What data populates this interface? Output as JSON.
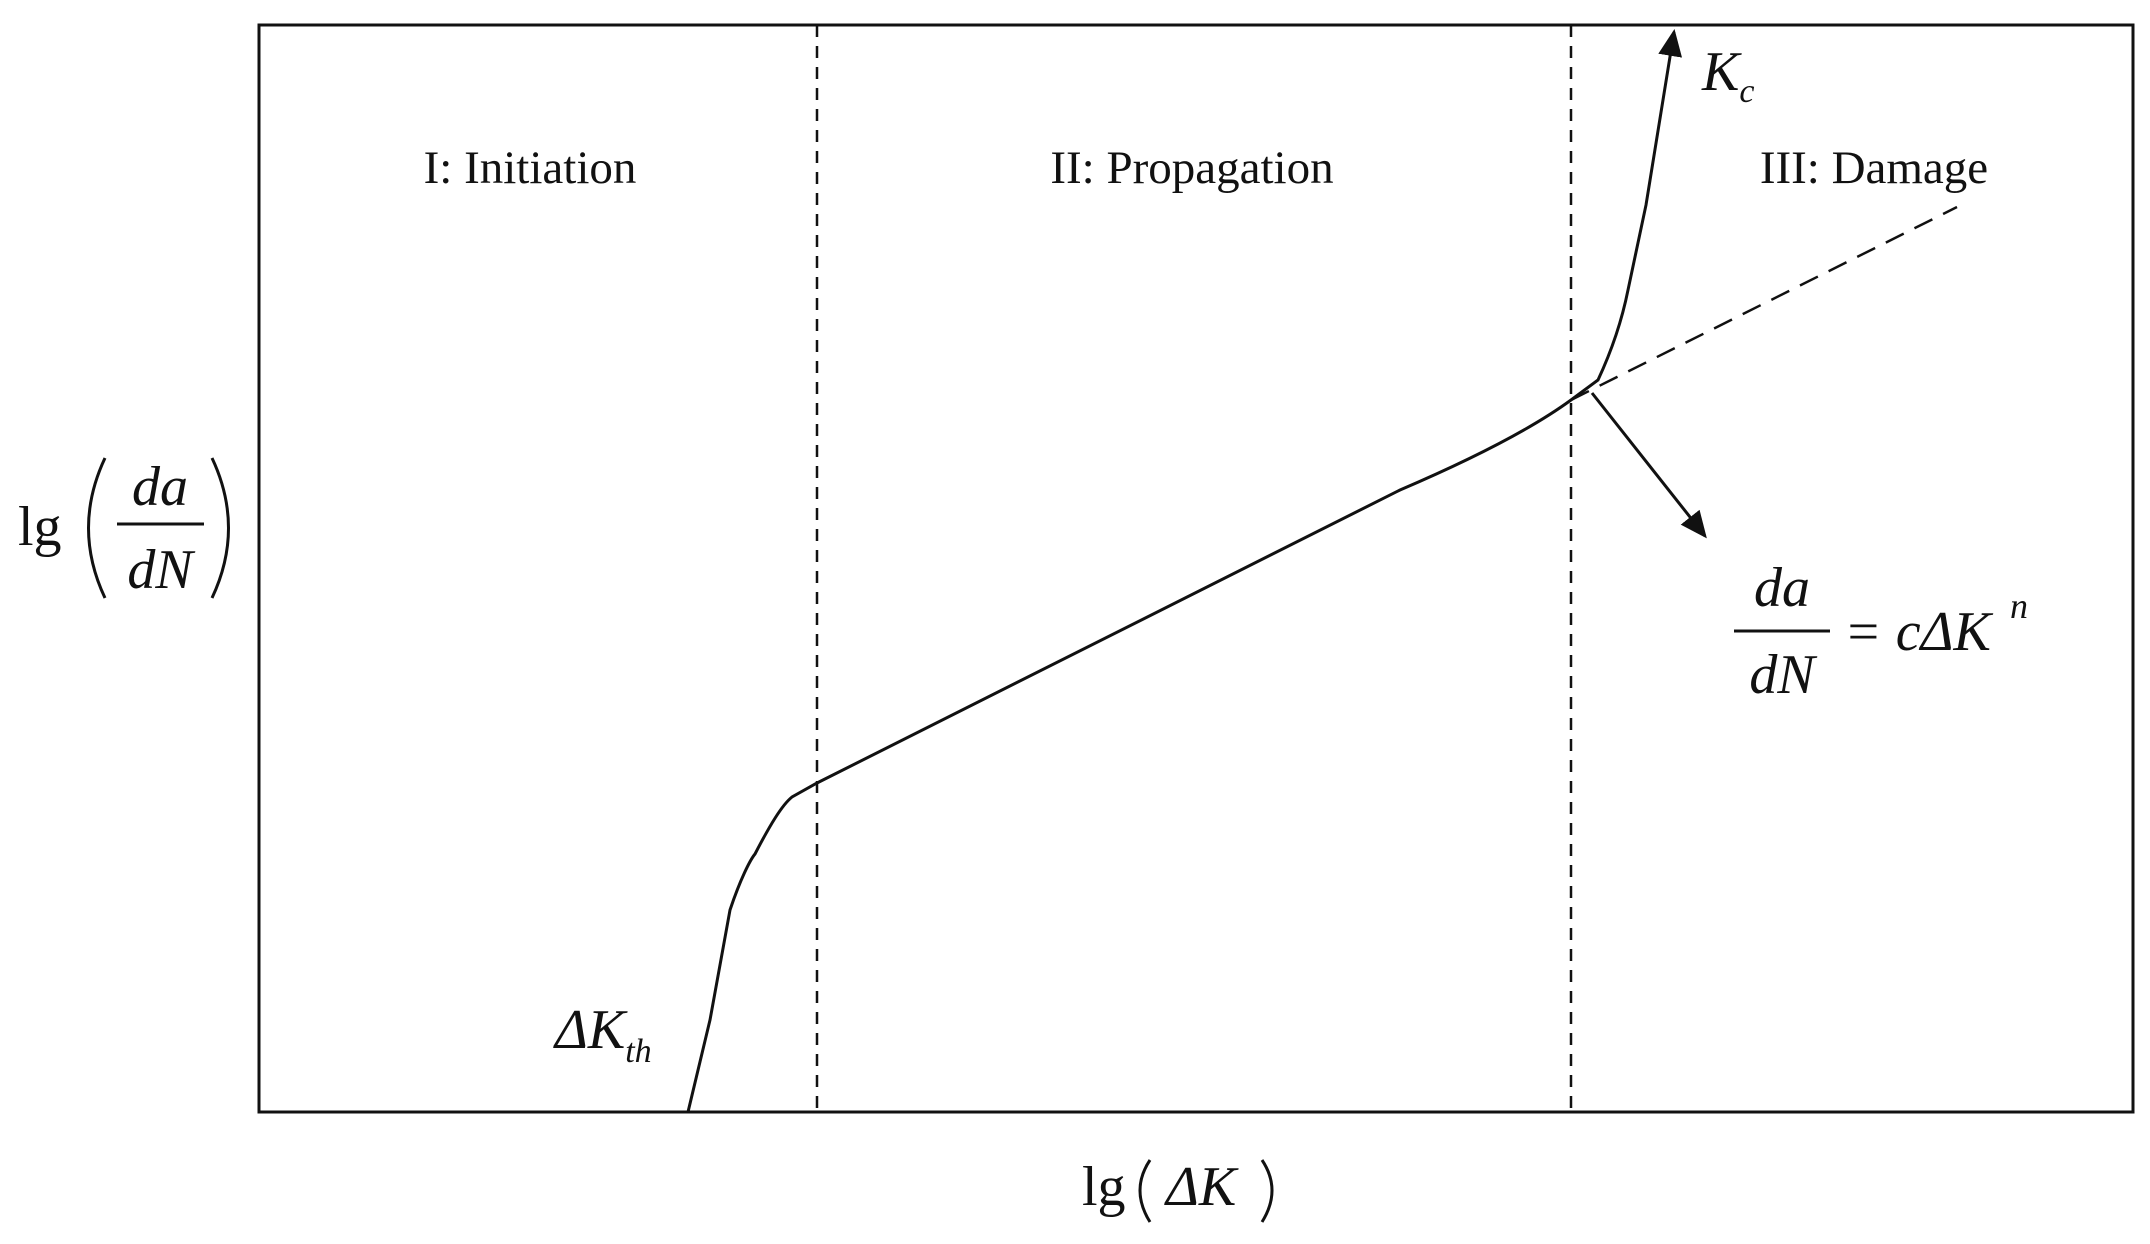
{
  "regions": [
    {
      "label": "I: Initiation"
    },
    {
      "label": "II: Propagation"
    },
    {
      "label": "III: Damage"
    }
  ],
  "annotations": {
    "critical": {
      "base": "K",
      "sub": "c"
    },
    "threshold": {
      "base": "ΔK",
      "sub": "th"
    }
  },
  "equation": {
    "numerator": "da",
    "denominator": "dN",
    "rhs": "= cΔK",
    "exponent": "n"
  },
  "y_axis": {
    "function": "lg",
    "numerator": "da",
    "denominator": "dN"
  },
  "x_axis": {
    "function": "lg",
    "argument": "ΔK"
  }
}
